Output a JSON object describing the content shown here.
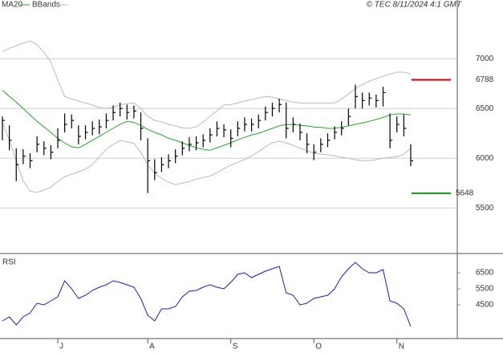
{
  "chart_data": {
    "type": "ohlc",
    "copyright": "© TEC 8/11/2024 4:1 GMT",
    "categories": [
      null,
      null,
      null,
      null,
      null,
      null,
      null,
      null,
      "J",
      null,
      null,
      null,
      null,
      null,
      null,
      null,
      null,
      null,
      null,
      null,
      null,
      "A",
      null,
      null,
      null,
      null,
      null,
      null,
      null,
      null,
      null,
      null,
      null,
      "S",
      null,
      null,
      null,
      null,
      null,
      null,
      null,
      null,
      null,
      null,
      null,
      "O",
      null,
      null,
      null,
      null,
      null,
      null,
      null,
      null,
      null,
      null,
      null,
      "N",
      null,
      null
    ],
    "ylim": [
      5050,
      7510
    ],
    "yticks": [
      5500,
      6000,
      6500,
      7000
    ],
    "grid": true,
    "price": {
      "color": "#000000",
      "high": [
        6420,
        6330,
        6100,
        6090,
        6050,
        6220,
        6170,
        6130,
        6300,
        6450,
        6440,
        6330,
        6330,
        6370,
        6390,
        6450,
        6530,
        6560,
        6540,
        6530,
        6460,
        6200,
        5990,
        6010,
        6040,
        6090,
        6170,
        6210,
        6220,
        6240,
        6300,
        6370,
        6340,
        6290,
        6370,
        6410,
        6400,
        6440,
        6520,
        6560,
        6600,
        6560,
        6410,
        6350,
        6250,
        6140,
        6200,
        6250,
        6320,
        6370,
        6500,
        6740,
        6660,
        6660,
        6640,
        6720,
        6450,
        6420,
        6440,
        6140
      ],
      "low": [
        6180,
        6080,
        5770,
        5940,
        5900,
        6060,
        6030,
        5990,
        6100,
        6260,
        6300,
        6140,
        6190,
        6230,
        6240,
        6300,
        6380,
        6420,
        6390,
        6400,
        6180,
        5650,
        5780,
        5860,
        5900,
        5950,
        6030,
        6070,
        6080,
        6110,
        6160,
        6220,
        6210,
        6110,
        6220,
        6270,
        6270,
        6300,
        6380,
        6420,
        6460,
        6200,
        6260,
        6180,
        6050,
        5980,
        6060,
        6110,
        6190,
        6230,
        6330,
        6500,
        6500,
        6530,
        6510,
        6520,
        6100,
        6260,
        6220,
        5920
      ],
      "close": [
        6380,
        6180,
        5935,
        6020,
        5975,
        6140,
        6100,
        6060,
        6180,
        6340,
        6380,
        6220,
        6260,
        6300,
        6315,
        6380,
        6460,
        6500,
        6460,
        6475,
        6300,
        5975,
        5855,
        5935,
        5975,
        6020,
        6100,
        6140,
        6155,
        6180,
        6235,
        6300,
        6285,
        6200,
        6300,
        6340,
        6340,
        6380,
        6460,
        6500,
        6540,
        6300,
        6340,
        6260,
        6140,
        6060,
        6140,
        6180,
        6260,
        6300,
        6420,
        6620,
        6580,
        6605,
        6580,
        6660,
        6180,
        6340,
        6300,
        5975
      ]
    },
    "ma": {
      "name": "MA20",
      "color": "#22a822",
      "values": [
        6685,
        6620,
        6565,
        6500,
        6435,
        6370,
        6315,
        6260,
        6200,
        6155,
        6115,
        6105,
        6140,
        6180,
        6220,
        6260,
        6300,
        6340,
        6370,
        6360,
        6330,
        6290,
        6260,
        6235,
        6200,
        6180,
        6155,
        6130,
        6105,
        6090,
        6080,
        6105,
        6130,
        6155,
        6185,
        6210,
        6235,
        6250,
        6275,
        6300,
        6325,
        6340,
        6340,
        6330,
        6325,
        6315,
        6310,
        6300,
        6300,
        6310,
        6325,
        6340,
        6355,
        6370,
        6390,
        6410,
        6435,
        6445,
        6445,
        6435
      ]
    },
    "bands": {
      "name": "BBands",
      "color": "#bbbbbb",
      "upper": [
        7070,
        7105,
        7130,
        7155,
        7180,
        7140,
        7065,
        6970,
        6785,
        6620,
        6595,
        6575,
        6555,
        6535,
        6510,
        6500,
        6515,
        6535,
        6550,
        6555,
        6500,
        6420,
        6380,
        6365,
        6340,
        6325,
        6305,
        6300,
        6315,
        6365,
        6420,
        6475,
        6535,
        6540,
        6555,
        6575,
        6590,
        6605,
        6620,
        6615,
        6595,
        6580,
        6565,
        6555,
        6555,
        6555,
        6555,
        6555,
        6555,
        6595,
        6645,
        6700,
        6740,
        6775,
        6800,
        6825,
        6845,
        6865,
        6865,
        6845
      ],
      "lower": [
        6365,
        6180,
        5975,
        5775,
        5670,
        5655,
        5680,
        5710,
        5765,
        5815,
        5840,
        5865,
        5890,
        5935,
        6015,
        6090,
        6140,
        6180,
        6165,
        6150,
        6060,
        5935,
        5845,
        5800,
        5760,
        5735,
        5750,
        5765,
        5790,
        5805,
        5820,
        5855,
        5895,
        5930,
        5960,
        5985,
        6025,
        6065,
        6115,
        6155,
        6170,
        6155,
        6130,
        6100,
        6075,
        6050,
        6040,
        6035,
        6025,
        6010,
        6000,
        5985,
        5975,
        5975,
        5985,
        6000,
        6010,
        6015,
        6040,
        6100
      ]
    },
    "levels": [
      {
        "value": 6788,
        "color": "#cc0000"
      },
      {
        "value": 5648,
        "color": "#119911"
      }
    ],
    "rsi": {
      "title": "RSI",
      "color": "#1a1acc",
      "ylim": [
        2400,
        7600
      ],
      "yticks": [
        4500,
        5500,
        6500
      ],
      "values": [
        3500,
        3750,
        3250,
        3750,
        4000,
        4600,
        4500,
        4750,
        5000,
        6000,
        5500,
        4900,
        5100,
        5400,
        5600,
        5750,
        6000,
        5900,
        5750,
        5600,
        4900,
        3850,
        3500,
        4250,
        4250,
        4400,
        5000,
        5350,
        5400,
        5600,
        5750,
        5600,
        5500,
        5900,
        6400,
        6500,
        6200,
        6400,
        6600,
        6750,
        6900,
        5250,
        5100,
        4500,
        4600,
        4900,
        5000,
        5100,
        5500,
        6250,
        6750,
        7150,
        6750,
        6500,
        6500,
        6700,
        4750,
        4600,
        4250,
        3150
      ]
    }
  }
}
